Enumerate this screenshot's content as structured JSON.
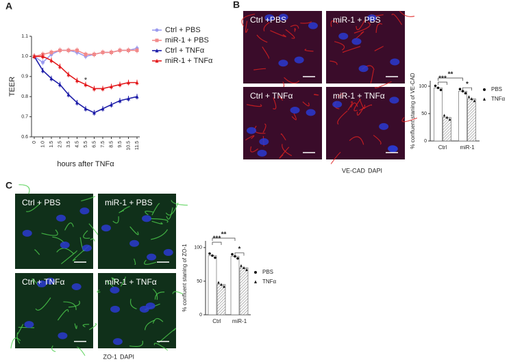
{
  "panel_labels": [
    "A",
    "B",
    "C"
  ],
  "chart_data": [
    {
      "type": "line",
      "x_label": "hours after TNFα",
      "y_label": "TEER",
      "categories": [
        "0",
        "1.0",
        "1.5",
        "2.5",
        "3.5",
        "4.5",
        "5.5",
        "6.5",
        "7.5",
        "8.5",
        "9.5",
        "10.5",
        "11.5"
      ],
      "ylim": [
        0.6,
        1.1
      ],
      "yticks": [
        0.6,
        0.7,
        0.8,
        0.9,
        {
          "value": 1,
          "label": "1.0"
        },
        1.1
      ],
      "series": [
        {
          "name": "Ctrl + PBS",
          "color": "#9b9bef",
          "marker": "circle",
          "values": [
            1.0,
            0.97,
            1.01,
            1.03,
            1.03,
            1.02,
            1.0,
            1.01,
            1.02,
            1.02,
            1.03,
            1.03,
            1.04
          ]
        },
        {
          "name": "miR-1 + PBS",
          "color": "#f28a8a",
          "marker": "square",
          "values": [
            1.0,
            1.01,
            1.02,
            1.03,
            1.03,
            1.03,
            1.01,
            1.01,
            1.02,
            1.02,
            1.03,
            1.03,
            1.03
          ]
        },
        {
          "name": "Ctrl + TNFα",
          "color": "#1c1ca8",
          "marker": "triangle",
          "values": [
            1.0,
            0.93,
            0.89,
            0.86,
            0.81,
            0.77,
            0.74,
            0.72,
            0.74,
            0.76,
            0.78,
            0.79,
            0.8
          ]
        },
        {
          "name": "miR-1 + TNFα",
          "color": "#e3191c",
          "marker": "triangle",
          "values": [
            1.0,
            1.0,
            0.98,
            0.95,
            0.91,
            0.88,
            0.86,
            0.84,
            0.84,
            0.85,
            0.86,
            0.87,
            0.87
          ]
        }
      ],
      "annotations": [
        "*"
      ]
    },
    {
      "type": "bar",
      "y_label": "% confluent staning of VE-CAD",
      "categories": [
        "Ctrl",
        "miR-1"
      ],
      "ylim": [
        0,
        110
      ],
      "yticks": [
        0,
        50,
        100
      ],
      "series": [
        {
          "name": "PBS",
          "color": "#ffffff",
          "marker": "circle",
          "values": [
            97,
            91
          ]
        },
        {
          "name": "TNFα",
          "color": "#bbbbbb",
          "marker": "triangle",
          "values": [
            43,
            77
          ]
        }
      ],
      "annotations": [
        "***",
        "**",
        "*"
      ]
    },
    {
      "type": "bar",
      "y_label": "% confluent staning of ZO-1",
      "categories": [
        "Ctrl",
        "miR-1"
      ],
      "ylim": [
        0,
        110
      ],
      "yticks": [
        0,
        50,
        100
      ],
      "series": [
        {
          "name": "PBS",
          "color": "#ffffff",
          "marker": "circle",
          "values": [
            88,
            87
          ]
        },
        {
          "name": "TNFα",
          "color": "#bbbbbb",
          "marker": "triangle",
          "values": [
            45,
            70
          ]
        }
      ],
      "annotations": [
        "***",
        "**",
        "*"
      ]
    }
  ],
  "micrographs": {
    "B": {
      "panels": [
        "Ctrl +PBS",
        "miR-1 + PBS",
        "Ctrl + TNFα",
        "miR-1 + TNFα"
      ],
      "stain": "VE-CAD",
      "counterstain": "DAPI"
    },
    "C": {
      "panels": [
        "Ctrl + PBS",
        "miR-1 + PBS",
        "Ctrl + TNFα",
        "miR-1 + TNFα"
      ],
      "stain": "ZO-1",
      "counterstain": "DAPI"
    }
  }
}
